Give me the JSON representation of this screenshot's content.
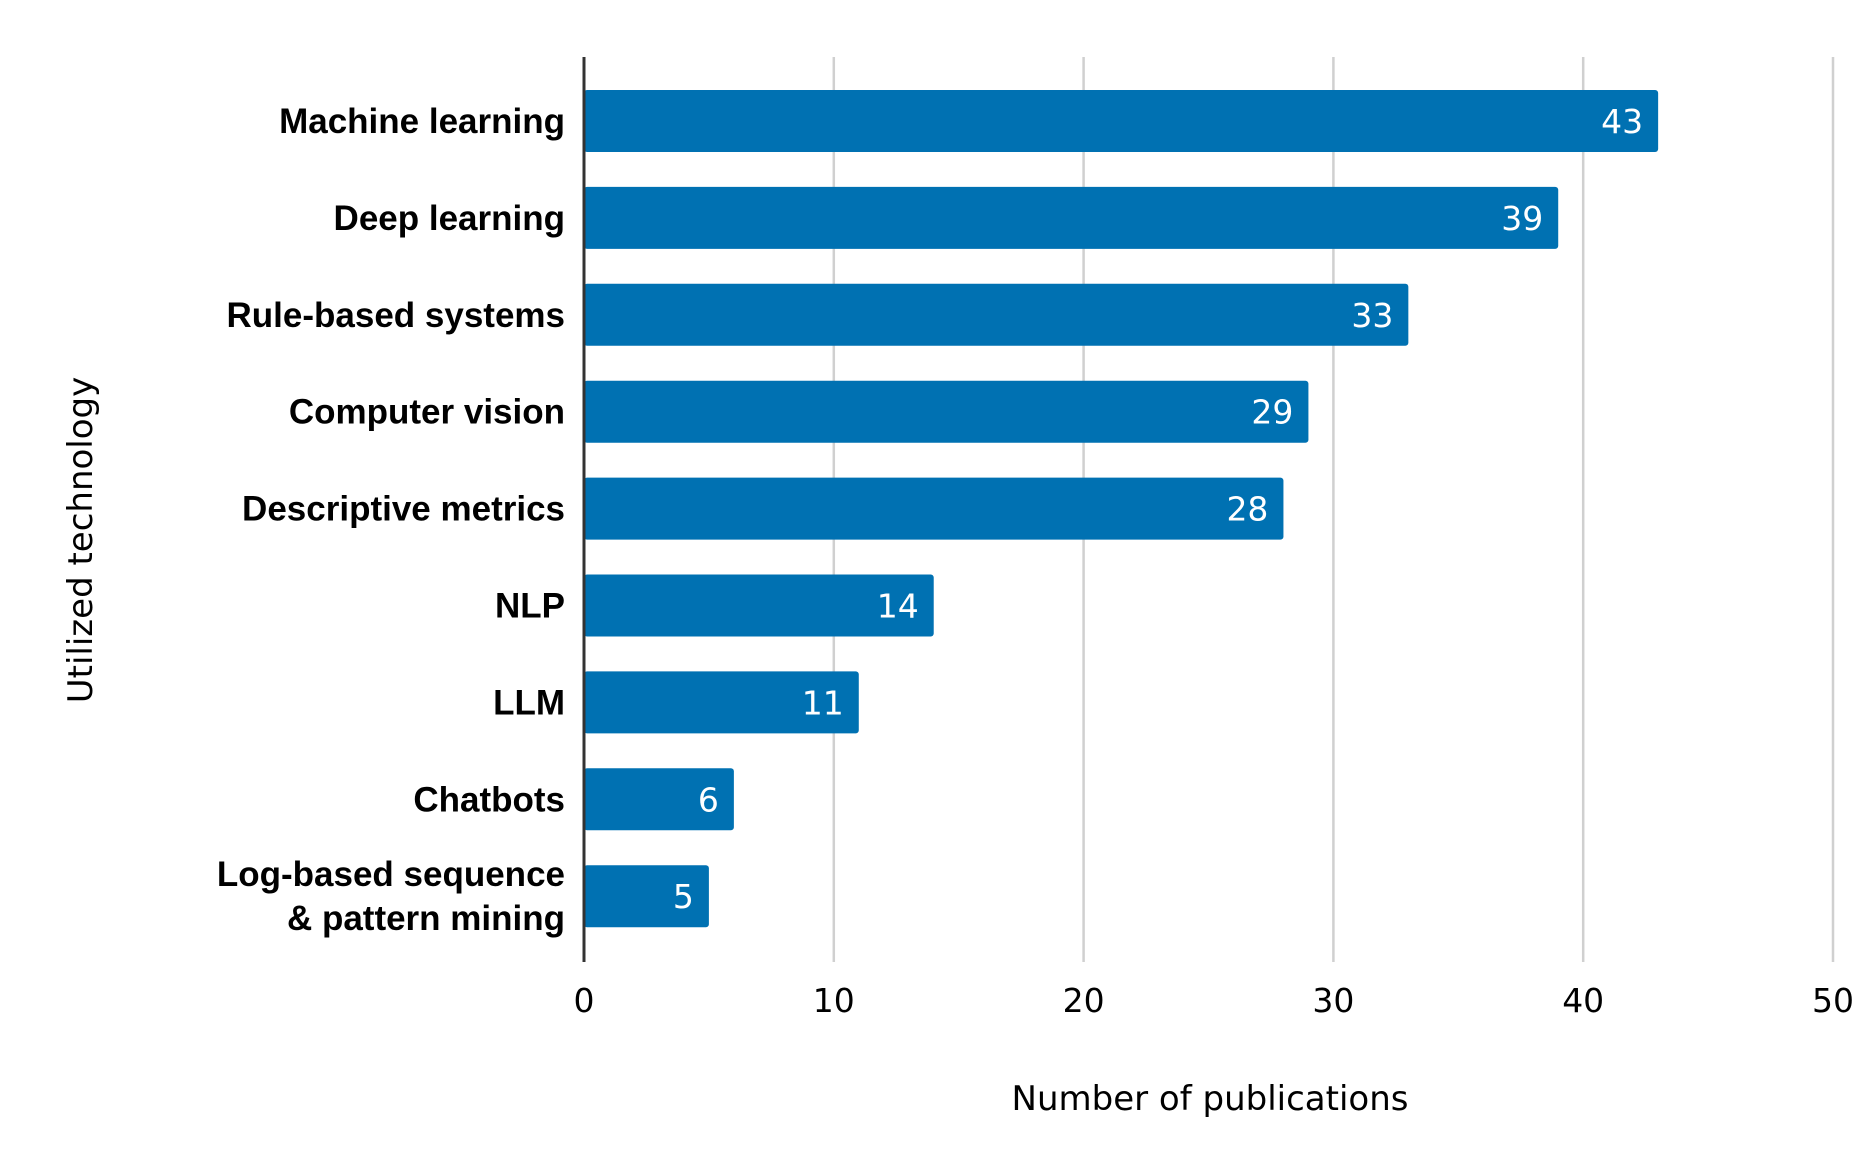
{
  "chart_data": {
    "type": "bar",
    "orientation": "horizontal",
    "categories": [
      "Machine learning",
      "Deep learning",
      "Rule-based systems",
      "Computer vision",
      "Descriptive metrics",
      "NLP",
      "LLM",
      "Chatbots",
      [
        "Log-based sequence",
        "& pattern mining"
      ]
    ],
    "values": [
      43,
      39,
      33,
      29,
      28,
      14,
      11,
      6,
      5
    ],
    "xlabel": "Number of publications",
    "ylabel": "Utilized technology",
    "xlim": [
      0,
      50
    ],
    "xticks": [
      0,
      10,
      20,
      30,
      40,
      50
    ],
    "grid": "vertical",
    "data_labels": "inside-end",
    "colors": {
      "bar": "#0071b2",
      "grid": "#d0d0d0",
      "axis": "#333333"
    }
  }
}
